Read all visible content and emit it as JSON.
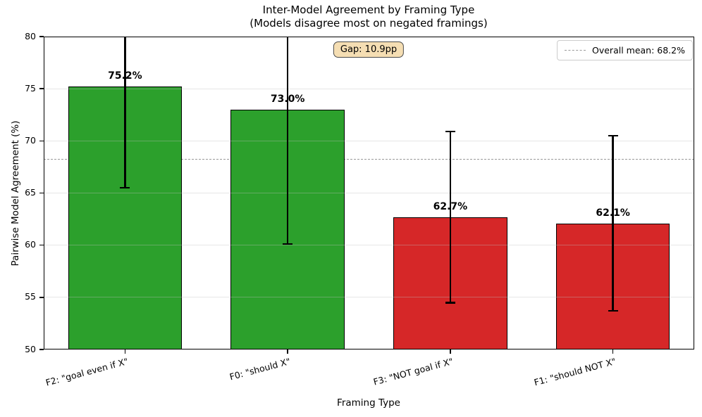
{
  "chart_data": {
    "type": "bar",
    "title": "Inter-Model Agreement by Framing Type",
    "subtitle": "(Models disagree most on negated framings)",
    "xlabel": "Framing Type",
    "ylabel": "Pairwise Model Agreement (%)",
    "ylim": [
      50,
      80
    ],
    "yticks": [
      50,
      55,
      60,
      65,
      70,
      75,
      80
    ],
    "ytick_labels": [
      "50",
      "55",
      "60",
      "65",
      "70",
      "75",
      "80"
    ],
    "grid": "horizontal, drawn faintly above bars",
    "categories": [
      "F2: \"goal even if X\"",
      "F0: \"should X\"",
      "F3: \"NOT goal if X\"",
      "F1: \"should NOT X\""
    ],
    "values": [
      75.2,
      73.0,
      62.7,
      62.1
    ],
    "value_labels": [
      "75.2%",
      "73.0%",
      "62.7%",
      "62.1%"
    ],
    "error_bars": [
      9.7,
      12.9,
      8.2,
      8.4
    ],
    "bar_colors": [
      "#2ca02c",
      "#2ca02c",
      "#d62728",
      "#d62728"
    ],
    "bar_edge_color": "#000000",
    "mean_line": {
      "value": 68.2,
      "style": "dashed",
      "color": "#999999"
    },
    "legend": {
      "label": "Overall mean: 68.2%",
      "position": "upper right"
    },
    "annotation": {
      "label": "Gap: 10.9pp",
      "bg_color": "#f5deb3",
      "border_color": "#4a4a4a"
    }
  }
}
